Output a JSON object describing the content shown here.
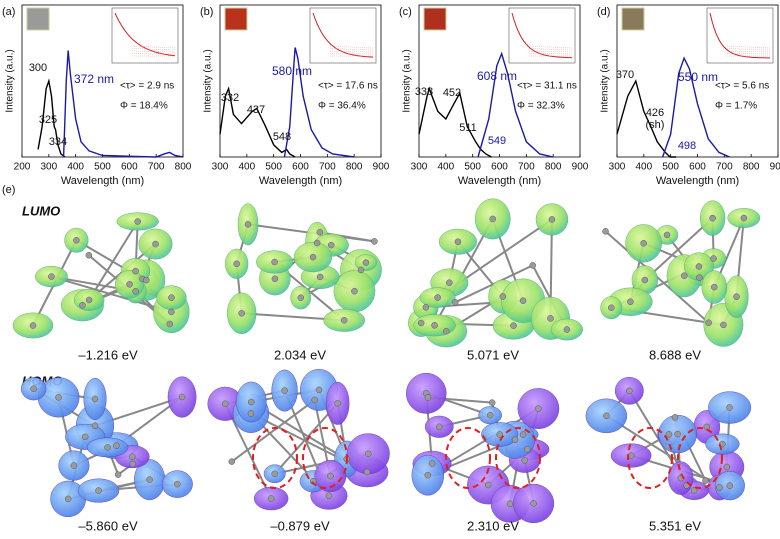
{
  "chart_data": [
    {
      "type": "line",
      "panel": "(a)",
      "xlabel": "Wavelength (nm)",
      "ylabel": "Intensity (a.u.)",
      "xlim": [
        200,
        800
      ],
      "xticks": [
        200,
        300,
        400,
        500,
        600,
        700,
        800
      ],
      "ylim": [
        0,
        1
      ],
      "series": [
        {
          "color": "#000000",
          "x": [
            260,
            275,
            290,
            300,
            310,
            320,
            325,
            334,
            345,
            360
          ],
          "values": [
            0.05,
            0.2,
            0.45,
            0.5,
            0.4,
            0.2,
            0.18,
            0.08,
            0.02,
            0
          ]
        },
        {
          "color": "#1a1aa6",
          "x": [
            355,
            365,
            372,
            380,
            400,
            420,
            450,
            500,
            700,
            730,
            750,
            770,
            800
          ],
          "values": [
            0,
            0.5,
            0.7,
            0.55,
            0.25,
            0.1,
            0.04,
            0.01,
            0,
            0.02,
            0.03,
            0.01,
            0
          ]
        }
      ],
      "annotations": [
        "300",
        "325",
        "334"
      ],
      "emission_label": "372 nm",
      "lifetime": "<τ> = 2.9 ns",
      "quantum_yield": "Φ = 18.4%"
    },
    {
      "type": "line",
      "panel": "(b)",
      "xlabel": "Wavelength (nm)",
      "ylabel": "Intensity (a.u.)",
      "xlim": [
        300,
        900
      ],
      "xticks": [
        300,
        400,
        500,
        600,
        700,
        800,
        900
      ],
      "ylim": [
        0,
        1
      ],
      "series": [
        {
          "color": "#000000",
          "x": [
            300,
            320,
            332,
            350,
            380,
            420,
            437,
            470,
            500,
            530,
            548,
            560,
            580
          ],
          "values": [
            0.15,
            0.4,
            0.45,
            0.28,
            0.22,
            0.3,
            0.32,
            0.2,
            0.08,
            0.03,
            0.05,
            0.02,
            0
          ]
        },
        {
          "color": "#1a1aa6",
          "x": [
            540,
            560,
            575,
            580,
            590,
            610,
            640,
            680,
            720,
            800
          ],
          "values": [
            0,
            0.2,
            0.6,
            0.72,
            0.65,
            0.4,
            0.18,
            0.06,
            0.02,
            0
          ]
        }
      ],
      "annotations": [
        "332",
        "437",
        "548"
      ],
      "emission_label": "580 nm",
      "lifetime": "<τ> = 17.6 ns",
      "quantum_yield": "Φ = 36.4%"
    },
    {
      "type": "line",
      "panel": "(c)",
      "xlabel": "Wavelength (nm)",
      "ylabel": "Intensity (a.u.)",
      "xlim": [
        300,
        900
      ],
      "xticks": [
        300,
        400,
        500,
        600,
        700,
        800,
        900
      ],
      "ylim": [
        0,
        1
      ],
      "series": [
        {
          "color": "#000000",
          "x": [
            300,
            330,
            338,
            370,
            400,
            430,
            452,
            480,
            511,
            530,
            549,
            570
          ],
          "values": [
            0.15,
            0.4,
            0.45,
            0.3,
            0.25,
            0.35,
            0.42,
            0.2,
            0.1,
            0.05,
            0.02,
            0
          ]
        },
        {
          "color": "#1a1aa6",
          "x": [
            520,
            560,
            590,
            608,
            630,
            660,
            700,
            750,
            800
          ],
          "values": [
            0,
            0.25,
            0.6,
            0.68,
            0.55,
            0.3,
            0.1,
            0.02,
            0
          ]
        }
      ],
      "annotations": [
        "338",
        "452",
        "511",
        "549"
      ],
      "emission_label": "608 nm",
      "lifetime": "<τ> = 31.1 ns",
      "quantum_yield": "Φ = 32.3%"
    },
    {
      "type": "line",
      "panel": "(d)",
      "xlabel": "Wavelength (nm)",
      "ylabel": "Intensity (a.u.)",
      "xlim": [
        300,
        900
      ],
      "xticks": [
        300,
        400,
        500,
        600,
        700,
        800,
        900
      ],
      "ylim": [
        0,
        1
      ],
      "series": [
        {
          "color": "#000000",
          "x": [
            300,
            340,
            370,
            400,
            426,
            450,
            480,
            498,
            520
          ],
          "values": [
            0.15,
            0.4,
            0.5,
            0.3,
            0.2,
            0.1,
            0.03,
            0,
            0
          ]
        },
        {
          "color": "#1a1aa6",
          "x": [
            470,
            500,
            530,
            550,
            570,
            600,
            640,
            680,
            720
          ],
          "values": [
            0,
            0.15,
            0.55,
            0.65,
            0.58,
            0.35,
            0.12,
            0.03,
            0
          ]
        }
      ],
      "annotations": [
        "370",
        "426",
        "(sh)",
        "498"
      ],
      "emission_label": "550 nm",
      "lifetime": "<τ> = 5.6 ns",
      "quantum_yield": "Φ = 1.7%"
    }
  ],
  "panel_e": {
    "label": "(e)",
    "rows": [
      {
        "label": "LUMO",
        "energies": [
          "–1.216 eV",
          "2.034 eV",
          "5.071 eV",
          "8.688 eV"
        ]
      },
      {
        "label": "HOMO",
        "energies": [
          "–5.860 eV",
          "–0.879 eV",
          "2.310 eV",
          "5.351 eV"
        ]
      }
    ]
  }
}
